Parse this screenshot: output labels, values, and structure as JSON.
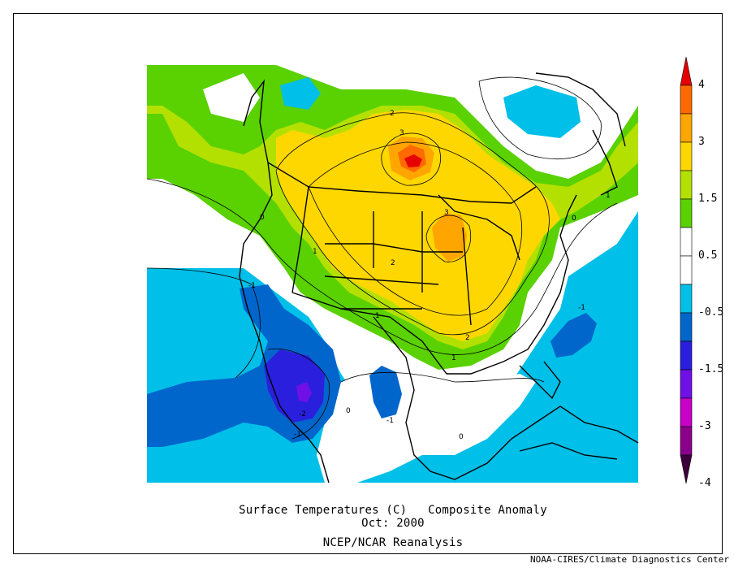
{
  "title": "Surface Temperatures (C)   Composite Anomaly",
  "period": "Oct: 2000",
  "source": "NCEP/NCAR Reanalysis",
  "credit": "NOAA-CIRES/Climate Diagnostics Center",
  "colorbar": {
    "tick_labels": [
      "4",
      "3",
      "1.5",
      "0.5",
      "-0.5",
      "-1.5",
      "-3",
      "-4"
    ],
    "colors": [
      "#e60000",
      "#ff6a00",
      "#ffa500",
      "#ffd700",
      "#b4e000",
      "#5ad100",
      "#ffffff",
      "#ffffff",
      "#00bfe8",
      "#0066cc",
      "#2a1fdd",
      "#6f11e6",
      "#c800c8",
      "#8b008b",
      "#3b003b"
    ]
  },
  "contour_labels": [
    "2",
    "3",
    "3",
    "2",
    "1",
    "0",
    "1",
    "2",
    "1",
    "0",
    "-1",
    "-1",
    "-2",
    "-1",
    "-1",
    "0",
    "0",
    "1"
  ]
}
